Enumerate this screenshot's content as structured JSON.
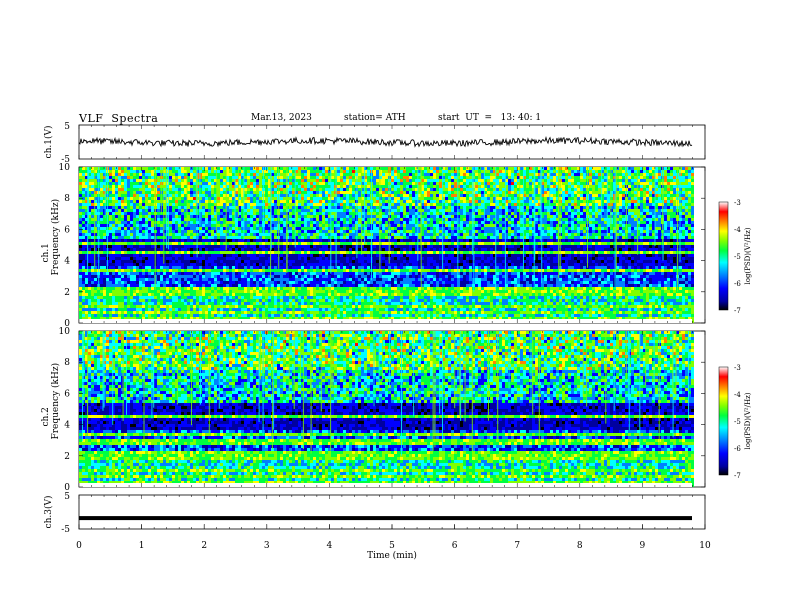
{
  "header": {
    "title": "VLF  Spectra",
    "date": "Mar.13, 2023",
    "station": "station= ATH",
    "start_ut": "start  UT  =   13: 40: 1"
  },
  "colors": {
    "trace": "#000000",
    "colormap": [
      "#000000",
      "#0000a0",
      "#0000ff",
      "#0080ff",
      "#00ffff",
      "#00ff40",
      "#80ff00",
      "#ffff00",
      "#ff8000",
      "#ff0000",
      "#ffffff"
    ]
  },
  "chart_data": [
    {
      "type": "line",
      "panel": "ch1-waveform",
      "ylabel": "ch.1(V)",
      "ylim": [
        -5,
        5
      ],
      "yticks": [
        "5",
        "-5"
      ],
      "xlim": [
        0,
        10
      ],
      "series": [
        {
          "values_mean": 0,
          "approx_amplitude": 1.2
        }
      ]
    },
    {
      "type": "heatmap",
      "panel": "ch1-spectrogram",
      "ylabel": "ch.1\nFrequency (kHz)",
      "ylim": [
        0,
        10
      ],
      "yticks": [
        "0",
        "2",
        "4",
        "6",
        "8",
        "10"
      ],
      "xlim": [
        0,
        10
      ],
      "colorbar": {
        "label": "log(PSD)(V²/Hz)",
        "ticks": [
          "-3",
          "-4",
          "-5",
          "-6",
          "-7"
        ],
        "range": [
          -7,
          -3
        ]
      },
      "bands_khz": [
        0.3,
        0.8,
        1.1,
        2.0,
        2.3,
        3.5,
        4.6,
        5.2
      ]
    },
    {
      "type": "heatmap",
      "panel": "ch2-spectrogram",
      "ylabel": "ch.2\nFrequency (kHz)",
      "ylim": [
        0,
        10
      ],
      "yticks": [
        "0",
        "2",
        "4",
        "6",
        "8",
        "10"
      ],
      "xlim": [
        0,
        10
      ],
      "colorbar": {
        "label": "log(PSD)(V²/Hz)",
        "ticks": [
          "-3",
          "-4",
          "-5",
          "-6",
          "-7"
        ],
        "range": [
          -7,
          -3
        ]
      },
      "bands_khz": [
        0.3,
        0.8,
        1.2,
        1.9,
        2.2,
        3.0,
        3.5,
        4.6
      ]
    },
    {
      "type": "line",
      "panel": "ch3-waveform",
      "ylabel": "ch.3(V)",
      "ylim": [
        -5,
        5
      ],
      "yticks": [
        "5",
        "-5"
      ],
      "xlim": [
        0,
        10
      ],
      "xlabel": "Time  (min)",
      "xticks": [
        "0",
        "1",
        "2",
        "3",
        "4",
        "5",
        "6",
        "7",
        "8",
        "9",
        "10"
      ],
      "series": [
        {
          "constant_value": -1.8
        }
      ]
    }
  ]
}
